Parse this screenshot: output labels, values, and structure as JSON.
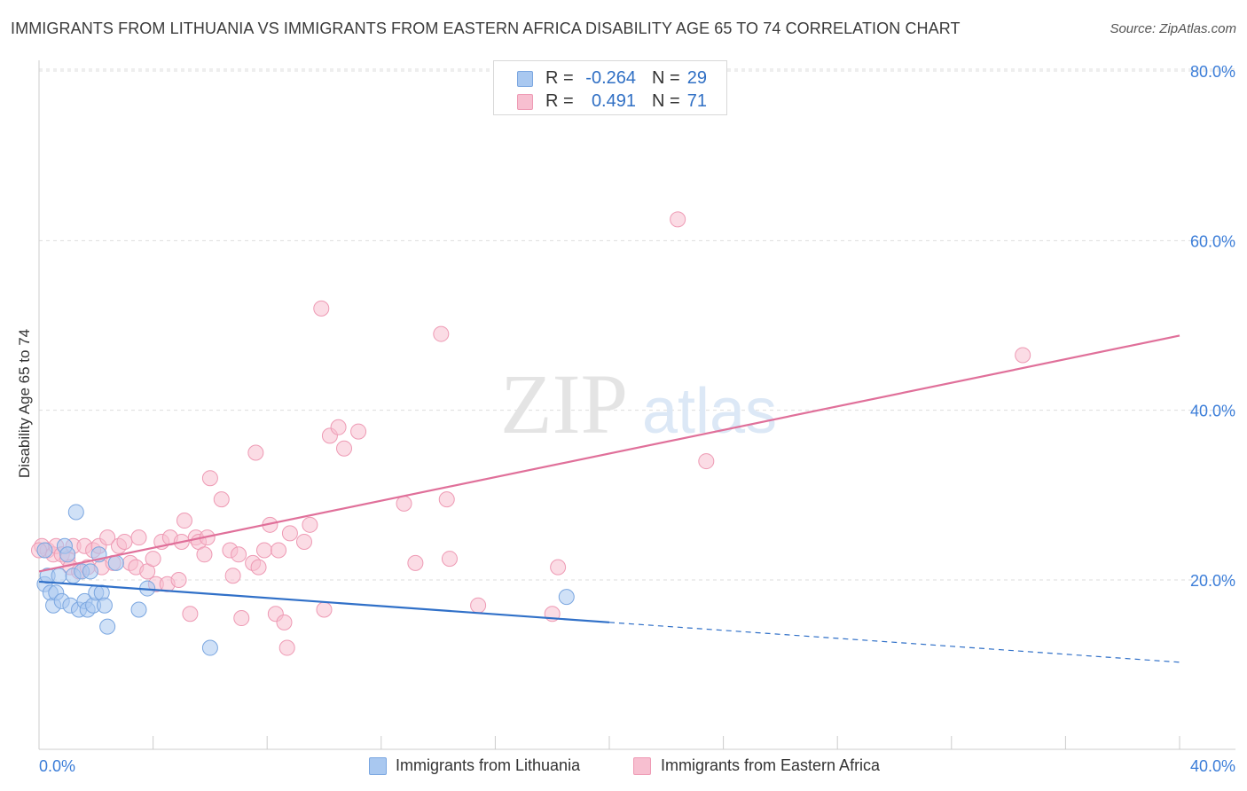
{
  "title": "IMMIGRANTS FROM LITHUANIA VS IMMIGRANTS FROM EASTERN AFRICA DISABILITY AGE 65 TO 74 CORRELATION CHART",
  "source": "Source: ZipAtlas.com",
  "watermark": {
    "zip": "ZIP",
    "atlas": "atlas"
  },
  "stats": {
    "lithuania": {
      "r_label": "R =",
      "r_value": "-0.264",
      "n_label": "N =",
      "n_value": "29"
    },
    "eastern_africa": {
      "r_label": "R =",
      "r_value": "0.491",
      "n_label": "N =",
      "n_value": "71"
    }
  },
  "legend": {
    "lithuania": "Immigrants from Lithuania",
    "eastern_africa": "Immigrants from Eastern Africa"
  },
  "colors": {
    "blue_fill": "#a9c8f0",
    "blue_stroke": "#7aa6e0",
    "blue_line": "#3070c8",
    "pink_fill": "#f7bfd0",
    "pink_stroke": "#ee9ab4",
    "pink_line": "#e0709a",
    "tick_text": "#3b7dd8",
    "grid": "#dddddd"
  },
  "chart_data": {
    "type": "scatter",
    "title": "IMMIGRANTS FROM LITHUANIA VS IMMIGRANTS FROM EASTERN AFRICA DISABILITY AGE 65 TO 74 CORRELATION CHART",
    "xlabel": "",
    "ylabel": "Disability Age 65 to 74",
    "xlim": [
      0,
      40
    ],
    "ylim": [
      0,
      82
    ],
    "x_tick_labels": [
      "0.0%",
      "40.0%"
    ],
    "y_ticks": [
      20,
      40,
      60,
      80
    ],
    "y_tick_labels": [
      "20.0%",
      "40.0%",
      "60.0%",
      "80.0%"
    ],
    "series": [
      {
        "name": "Immigrants from Lithuania",
        "color": "blue",
        "points": [
          [
            0.2,
            23.5
          ],
          [
            0.2,
            19.5
          ],
          [
            0.3,
            20.5
          ],
          [
            0.4,
            18.5
          ],
          [
            0.5,
            17.0
          ],
          [
            0.6,
            18.5
          ],
          [
            0.7,
            20.5
          ],
          [
            0.8,
            17.5
          ],
          [
            0.9,
            24.0
          ],
          [
            1.0,
            23.0
          ],
          [
            1.1,
            17.0
          ],
          [
            1.2,
            20.5
          ],
          [
            1.3,
            28.0
          ],
          [
            1.4,
            16.5
          ],
          [
            1.5,
            21.0
          ],
          [
            1.6,
            17.5
          ],
          [
            1.7,
            16.5
          ],
          [
            1.8,
            21.0
          ],
          [
            1.9,
            17.0
          ],
          [
            2.0,
            18.5
          ],
          [
            2.1,
            23.0
          ],
          [
            2.2,
            18.5
          ],
          [
            2.3,
            17.0
          ],
          [
            2.4,
            14.5
          ],
          [
            2.7,
            22.0
          ],
          [
            3.5,
            16.5
          ],
          [
            3.8,
            19.0
          ],
          [
            6.0,
            12.0
          ],
          [
            18.5,
            18.0
          ]
        ]
      },
      {
        "name": "Immigrants from Eastern Africa",
        "color": "pink",
        "points": [
          [
            0.1,
            24.0
          ],
          [
            0.3,
            23.5
          ],
          [
            0.5,
            23.0
          ],
          [
            0.6,
            24.0
          ],
          [
            0.8,
            23.0
          ],
          [
            1.0,
            22.5
          ],
          [
            1.1,
            21.5
          ],
          [
            1.2,
            24.0
          ],
          [
            1.4,
            21.0
          ],
          [
            1.6,
            24.0
          ],
          [
            1.7,
            21.5
          ],
          [
            1.9,
            23.5
          ],
          [
            2.1,
            24.0
          ],
          [
            2.2,
            21.5
          ],
          [
            2.4,
            25.0
          ],
          [
            2.6,
            22.0
          ],
          [
            2.8,
            24.0
          ],
          [
            3.0,
            24.5
          ],
          [
            3.2,
            22.0
          ],
          [
            3.4,
            21.5
          ],
          [
            3.5,
            25.0
          ],
          [
            3.8,
            21.0
          ],
          [
            4.0,
            22.5
          ],
          [
            4.1,
            19.5
          ],
          [
            4.3,
            24.5
          ],
          [
            4.5,
            19.5
          ],
          [
            4.6,
            25.0
          ],
          [
            4.9,
            20.0
          ],
          [
            5.0,
            24.5
          ],
          [
            5.1,
            27.0
          ],
          [
            5.3,
            16.0
          ],
          [
            5.5,
            25.0
          ],
          [
            5.6,
            24.5
          ],
          [
            5.8,
            23.0
          ],
          [
            5.9,
            25.0
          ],
          [
            6.0,
            32.0
          ],
          [
            6.4,
            29.5
          ],
          [
            6.7,
            23.5
          ],
          [
            6.8,
            20.5
          ],
          [
            7.0,
            23.0
          ],
          [
            7.1,
            15.5
          ],
          [
            7.5,
            22.0
          ],
          [
            7.6,
            35.0
          ],
          [
            7.7,
            21.5
          ],
          [
            7.9,
            23.5
          ],
          [
            8.1,
            26.5
          ],
          [
            8.3,
            16.0
          ],
          [
            8.4,
            23.5
          ],
          [
            8.6,
            15.0
          ],
          [
            8.7,
            12.0
          ],
          [
            8.8,
            25.5
          ],
          [
            9.3,
            24.5
          ],
          [
            9.5,
            26.5
          ],
          [
            9.9,
            52.0
          ],
          [
            10.0,
            16.5
          ],
          [
            10.2,
            37.0
          ],
          [
            10.5,
            38.0
          ],
          [
            10.7,
            35.5
          ],
          [
            11.2,
            37.5
          ],
          [
            12.8,
            29.0
          ],
          [
            13.2,
            22.0
          ],
          [
            14.1,
            49.0
          ],
          [
            14.3,
            29.5
          ],
          [
            14.4,
            22.5
          ],
          [
            15.4,
            17.0
          ],
          [
            18.0,
            16.0
          ],
          [
            18.2,
            21.5
          ],
          [
            22.4,
            62.5
          ],
          [
            23.4,
            34.0
          ],
          [
            34.5,
            46.5
          ],
          [
            0.0,
            23.5
          ]
        ]
      }
    ],
    "trend_lines": [
      {
        "series": "Immigrants from Lithuania",
        "solid": [
          [
            0,
            19.8
          ],
          [
            20,
            15.0
          ]
        ],
        "dashed": [
          [
            20,
            15.0
          ],
          [
            40,
            10.3
          ]
        ]
      },
      {
        "series": "Immigrants from Eastern Africa",
        "solid": [
          [
            0,
            21.0
          ],
          [
            40,
            48.8
          ]
        ]
      }
    ]
  }
}
